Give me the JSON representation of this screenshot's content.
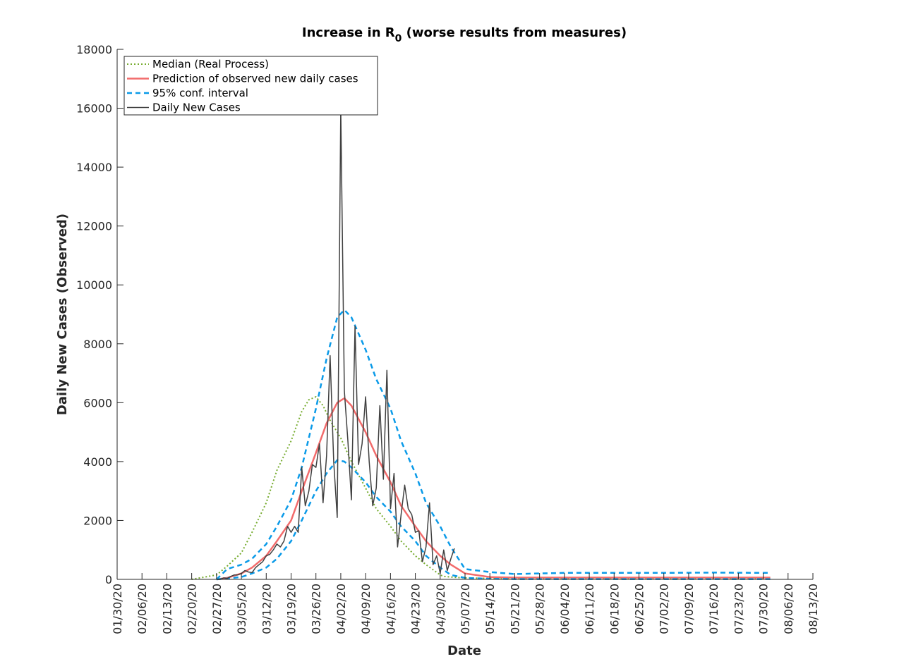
{
  "chart_data": {
    "type": "line",
    "title": "Increase in R",
    "title_subscript": "0",
    "title_suffix": " (worse results from measures)",
    "xlabel": "Date",
    "ylabel": "Daily New Cases (Observed)",
    "ylim": [
      0,
      18000
    ],
    "yticks": [
      0,
      2000,
      4000,
      6000,
      8000,
      10000,
      12000,
      14000,
      16000,
      18000
    ],
    "xlim": [
      "01/30/20",
      "08/13/20"
    ],
    "xticks": [
      "01/30/20",
      "02/06/20",
      "02/13/20",
      "02/20/20",
      "02/27/20",
      "03/05/20",
      "03/12/20",
      "03/19/20",
      "03/26/20",
      "04/02/20",
      "04/09/20",
      "04/16/20",
      "04/23/20",
      "04/30/20",
      "05/07/20",
      "05/14/20",
      "05/21/20",
      "05/28/20",
      "06/04/20",
      "06/11/20",
      "06/18/20",
      "06/25/20",
      "07/02/20",
      "07/09/20",
      "07/16/20",
      "07/23/20",
      "07/30/20",
      "08/06/20",
      "08/13/20"
    ],
    "legend_position": "top-left",
    "grid": false,
    "series": [
      {
        "name": "Median (Real Process)",
        "color": "#77AC30",
        "style": "dotted",
        "x": [
          "02/20/20",
          "02/27/20",
          "03/01/20",
          "03/05/20",
          "03/08/20",
          "03/12/20",
          "03/15/20",
          "03/19/20",
          "03/22/20",
          "03/24/20",
          "03/26/20",
          "03/28/20",
          "03/30/20",
          "04/02/20",
          "04/05/20",
          "04/09/20",
          "04/12/20",
          "04/16/20",
          "04/19/20",
          "04/23/20",
          "04/26/20",
          "04/30/20",
          "05/01/20",
          "05/04/20",
          "05/07/20",
          "05/14/20",
          "05/21/20",
          "06/04/20",
          "06/18/20",
          "07/02/20",
          "07/16/20",
          "07/30/20",
          "08/01/20"
        ],
        "y": [
          0,
          150,
          450,
          900,
          1600,
          2600,
          3700,
          4700,
          5700,
          6100,
          6200,
          5900,
          5400,
          4800,
          4000,
          3100,
          2400,
          1800,
          1300,
          800,
          500,
          150,
          100,
          70,
          50,
          30,
          20,
          15,
          15,
          15,
          15,
          15,
          15
        ]
      },
      {
        "name": "Prediction of observed new daily cases",
        "color": "#F26B6B",
        "style": "solid",
        "x": [
          "02/27/20",
          "03/01/20",
          "03/05/20",
          "03/08/20",
          "03/12/20",
          "03/15/20",
          "03/19/20",
          "03/22/20",
          "03/26/20",
          "03/29/20",
          "04/01/20",
          "04/03/20",
          "04/05/20",
          "04/09/20",
          "04/12/20",
          "04/16/20",
          "04/19/20",
          "04/23/20",
          "04/26/20",
          "04/30/20",
          "05/03/20",
          "05/07/20",
          "05/14/20",
          "05/21/20",
          "06/04/20",
          "06/18/20",
          "07/02/20",
          "07/16/20",
          "07/30/20",
          "08/01/20"
        ],
        "y": [
          0,
          50,
          200,
          400,
          800,
          1300,
          2000,
          3000,
          4300,
          5300,
          6000,
          6150,
          5900,
          5000,
          4200,
          3300,
          2500,
          1800,
          1300,
          800,
          500,
          200,
          80,
          60,
          60,
          60,
          60,
          60,
          60,
          60
        ]
      },
      {
        "name": "95% conf. interval",
        "color": "#0A9AE8",
        "style": "dashed",
        "x": [
          "02/27/20",
          "03/01/20",
          "03/05/20",
          "03/08/20",
          "03/12/20",
          "03/15/20",
          "03/19/20",
          "03/22/20",
          "03/26/20",
          "03/29/20",
          "04/01/20",
          "04/03/20",
          "04/05/20",
          "04/09/20",
          "04/12/20",
          "04/16/20",
          "04/19/20",
          "04/23/20",
          "04/26/20",
          "04/30/20",
          "05/03/20",
          "05/07/20",
          "05/14/20",
          "05/21/20",
          "05/28/20",
          "06/04/20",
          "06/18/20",
          "07/02/20",
          "07/16/20",
          "07/30/20",
          "08/01/20"
        ],
        "y": [
          0,
          350,
          500,
          700,
          1200,
          1800,
          2700,
          3800,
          5800,
          7500,
          8900,
          9150,
          8900,
          7800,
          6800,
          5800,
          4700,
          3600,
          2600,
          1800,
          1100,
          350,
          250,
          180,
          200,
          220,
          220,
          220,
          230,
          220,
          220
        ]
      },
      {
        "name": "95% conf. interval (lower)",
        "color": "#0A9AE8",
        "style": "dashed",
        "legend": false,
        "x": [
          "02/27/20",
          "03/01/20",
          "03/05/20",
          "03/08/20",
          "03/12/20",
          "03/15/20",
          "03/19/20",
          "03/22/20",
          "03/26/20",
          "03/29/20",
          "04/01/20",
          "04/03/20",
          "04/05/20",
          "04/09/20",
          "04/12/20",
          "04/16/20",
          "04/19/20",
          "04/23/20",
          "04/26/20",
          "04/30/20",
          "05/03/20",
          "05/07/20",
          "05/14/20",
          "05/21/20",
          "06/04/20",
          "06/18/20",
          "07/02/20",
          "07/16/20",
          "07/30/20",
          "08/01/20"
        ],
        "y": [
          0,
          30,
          80,
          200,
          400,
          700,
          1300,
          2000,
          3000,
          3600,
          4050,
          4000,
          3800,
          3300,
          2800,
          2300,
          1800,
          1300,
          800,
          400,
          150,
          50,
          20,
          10,
          10,
          10,
          10,
          10,
          10,
          10
        ]
      },
      {
        "name": "Daily New Cases",
        "color": "#404040",
        "style": "solid",
        "x": [
          "02/27/20",
          "02/28/20",
          "02/29/20",
          "03/01/20",
          "03/02/20",
          "03/03/20",
          "03/04/20",
          "03/05/20",
          "03/06/20",
          "03/07/20",
          "03/08/20",
          "03/09/20",
          "03/10/20",
          "03/11/20",
          "03/12/20",
          "03/13/20",
          "03/14/20",
          "03/15/20",
          "03/16/20",
          "03/17/20",
          "03/18/20",
          "03/19/20",
          "03/20/20",
          "03/21/20",
          "03/22/20",
          "03/23/20",
          "03/24/20",
          "03/25/20",
          "03/26/20",
          "03/27/20",
          "03/28/20",
          "03/29/20",
          "03/30/20",
          "03/31/20",
          "04/01/20",
          "04/02/20",
          "04/03/20",
          "04/04/20",
          "04/05/20",
          "04/06/20",
          "04/07/20",
          "04/08/20",
          "04/09/20",
          "04/10/20",
          "04/11/20",
          "04/12/20",
          "04/13/20",
          "04/14/20",
          "04/15/20",
          "04/16/20",
          "04/17/20",
          "04/18/20",
          "04/19/20",
          "04/20/20",
          "04/21/20",
          "04/22/20",
          "04/23/20",
          "04/24/20",
          "04/25/20",
          "04/26/20",
          "04/27/20",
          "04/28/20",
          "04/29/20",
          "04/30/20",
          "05/01/20",
          "05/02/20",
          "05/03/20",
          "05/04/20"
        ],
        "y": [
          0,
          0,
          50,
          30,
          100,
          150,
          150,
          200,
          300,
          250,
          230,
          400,
          500,
          600,
          800,
          850,
          1000,
          1200,
          1100,
          1300,
          1800,
          1600,
          1800,
          1600,
          3800,
          2500,
          3000,
          3900,
          3800,
          4600,
          2600,
          4200,
          7600,
          4000,
          2100,
          16000,
          6400,
          4700,
          2700,
          8600,
          3900,
          4600,
          6200,
          4000,
          2500,
          3100,
          5900,
          3400,
          7100,
          2400,
          3600,
          1100,
          2200,
          3200,
          2400,
          2200,
          1600,
          1650,
          600,
          1100,
          2600,
          500,
          800,
          200,
          1000,
          300,
          700,
          1050
        ]
      }
    ]
  }
}
